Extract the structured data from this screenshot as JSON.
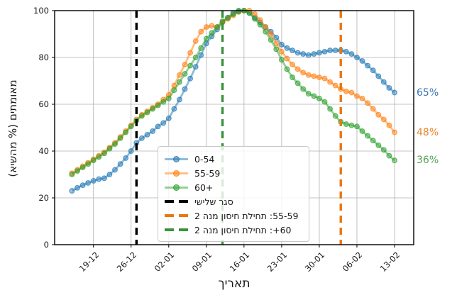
{
  "axes": {
    "x_label": "תאריך",
    "y_label": "מאומתים (% מהשיא)",
    "y_ticks": [
      0,
      20,
      40,
      60,
      80,
      100
    ],
    "x_tick_dates": [
      "19-12",
      "26-12",
      "02-01",
      "09-01",
      "16-01",
      "23-01",
      "30-01",
      "06-02",
      "13-02"
    ]
  },
  "chart_data": {
    "type": "line",
    "title": "",
    "xlabel": "תאריך",
    "ylabel": "מאומתים (% מהשיא)",
    "ylim": [
      0,
      100
    ],
    "grid": true,
    "legend_position": "lower center",
    "x": [
      "15-12",
      "16-12",
      "17-12",
      "18-12",
      "19-12",
      "20-12",
      "21-12",
      "22-12",
      "23-12",
      "24-12",
      "25-12",
      "26-12",
      "27-12",
      "28-12",
      "29-12",
      "30-12",
      "31-12",
      "01-01",
      "02-01",
      "03-01",
      "04-01",
      "05-01",
      "06-01",
      "07-01",
      "08-01",
      "09-01",
      "10-01",
      "11-01",
      "12-01",
      "13-01",
      "14-01",
      "15-01",
      "16-01",
      "17-01",
      "18-01",
      "19-01",
      "20-01",
      "21-01",
      "22-01",
      "23-01",
      "24-01",
      "25-01",
      "26-01",
      "27-01",
      "28-01",
      "29-01",
      "30-01",
      "31-01",
      "01-02",
      "02-02",
      "03-02",
      "04-02",
      "05-02",
      "06-02",
      "07-02",
      "08-02",
      "09-02",
      "10-02",
      "11-02",
      "12-02",
      "13-02"
    ],
    "series": [
      {
        "name": "0-54",
        "color": "#1f77b4",
        "end_label": "65%",
        "end_label_color": "#3c76af",
        "values": [
          23,
          24.3,
          25.4,
          26.4,
          27.3,
          28,
          28.4,
          30,
          32,
          34.5,
          37,
          40,
          43.5,
          45.5,
          47,
          48.5,
          50.5,
          52,
          54,
          58,
          62,
          66.5,
          71,
          76,
          81,
          86,
          89,
          92,
          95,
          97,
          99,
          100,
          100,
          99,
          97,
          95,
          93,
          91,
          88.5,
          85.5,
          84,
          83,
          82,
          81.5,
          81,
          81.5,
          82,
          82.5,
          83,
          83,
          83,
          82.5,
          81.5,
          80,
          78.5,
          76.5,
          74.5,
          72,
          69.5,
          67,
          65
        ]
      },
      {
        "name": "55-59",
        "color": "#ff7f0e",
        "end_label": "48%",
        "end_label_color": "#e9872f",
        "values": [
          30.5,
          32,
          33.5,
          35,
          36.5,
          38,
          39.5,
          41.5,
          43.5,
          46,
          48.5,
          51,
          53.5,
          55.5,
          57,
          58.5,
          60,
          62,
          64,
          68,
          72.5,
          77,
          82,
          87,
          91,
          93,
          93.5,
          93,
          95,
          96.5,
          98,
          99.5,
          100,
          100,
          98.5,
          96,
          93,
          90,
          86,
          82.5,
          79.5,
          77,
          75,
          73.5,
          72.5,
          72,
          71.5,
          71,
          69.5,
          68,
          66.5,
          65.5,
          65,
          63.5,
          62.5,
          60.5,
          58,
          55.5,
          53.5,
          51,
          48
        ]
      },
      {
        "name": "60+",
        "color": "#2ca02c",
        "end_label": "36%",
        "end_label_color": "#53a353",
        "values": [
          30,
          31.5,
          33,
          34.5,
          36,
          37.5,
          39,
          41,
          43,
          45.5,
          48,
          50.5,
          53,
          55,
          56.5,
          58,
          59.5,
          61,
          62.5,
          66,
          69.5,
          73,
          76.5,
          80,
          84,
          88,
          90.5,
          93,
          95.5,
          97,
          98.5,
          99.5,
          100,
          99,
          96.5,
          94,
          91,
          87.5,
          83.5,
          79,
          75,
          71.5,
          69,
          66.5,
          64.5,
          63.5,
          62.5,
          61,
          58,
          55,
          52.5,
          51.5,
          51,
          50.5,
          48.5,
          46.5,
          44.5,
          42.5,
          40.5,
          38,
          36
        ]
      }
    ],
    "vlines": [
      {
        "label": "סגר שלישי",
        "date": "27-12",
        "color": "#000000"
      },
      {
        "label": "55-59: תחילת חיסון מנה 2",
        "date": "03-02",
        "color": "#e8770e"
      },
      {
        "label": "60+: תחילת חיסון מנה 2",
        "date": "12-01",
        "color": "#3a923a"
      }
    ]
  },
  "annotations": [
    {
      "text": "65%",
      "value": 65,
      "color": "#3c76af"
    },
    {
      "text": "48%",
      "value": 48,
      "color": "#e9872f"
    },
    {
      "text": "36%",
      "value": 36,
      "color": "#53a353"
    }
  ]
}
